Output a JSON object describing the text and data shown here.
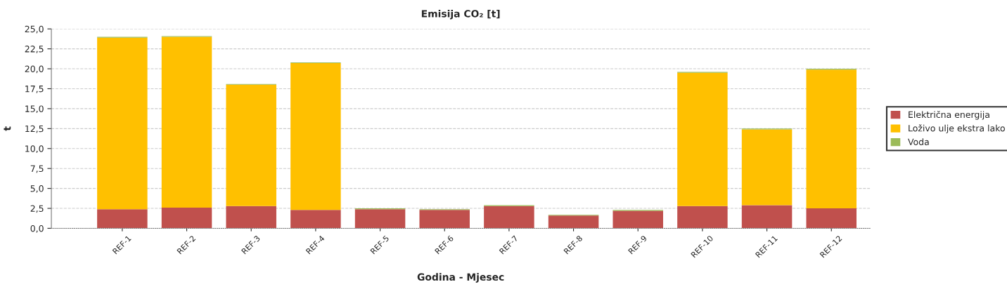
{
  "chart_data": {
    "type": "bar",
    "title": "Emisija CO₂ [t]",
    "xlabel": "Godina - Mjesec",
    "ylabel": "t",
    "categories": [
      "REF-1",
      "REF-2",
      "REF-3",
      "REF-4",
      "REF-5",
      "REF-6",
      "REF-7",
      "REF-8",
      "REF-9",
      "REF-10",
      "REF-11",
      "REF-12"
    ],
    "stacked": true,
    "series": [
      {
        "name": "Električna energija",
        "color": "#c0504d",
        "values": [
          2.4,
          2.6,
          2.8,
          2.3,
          2.4,
          2.3,
          2.8,
          1.6,
          2.2,
          2.8,
          2.9,
          2.5
        ]
      },
      {
        "name": "Loživo ulje ekstra lako",
        "color": "#ffc000",
        "values": [
          21.5,
          21.4,
          15.2,
          18.4,
          0,
          0,
          0,
          0,
          0,
          16.7,
          9.5,
          17.4
        ]
      },
      {
        "name": "Voda",
        "color": "#9bbb59",
        "values": [
          0.1,
          0.1,
          0.1,
          0.1,
          0.1,
          0.1,
          0.1,
          0.1,
          0.1,
          0.1,
          0.1,
          0.1
        ]
      }
    ],
    "ylim": [
      0,
      25
    ],
    "yticks": [
      {
        "value": 0,
        "label": "0,0"
      },
      {
        "value": 2.5,
        "label": "2,5"
      },
      {
        "value": 5,
        "label": "5,0"
      },
      {
        "value": 7.5,
        "label": "7,5"
      },
      {
        "value": 10,
        "label": "10,0"
      },
      {
        "value": 12.5,
        "label": "12,5"
      },
      {
        "value": 15,
        "label": "15,0"
      },
      {
        "value": 17.5,
        "label": "17,5"
      },
      {
        "value": 20,
        "label": "20,0"
      },
      {
        "value": 22.5,
        "label": "22,5"
      },
      {
        "value": 25,
        "label": "25,0"
      }
    ],
    "grid": "y",
    "legend": "right"
  }
}
